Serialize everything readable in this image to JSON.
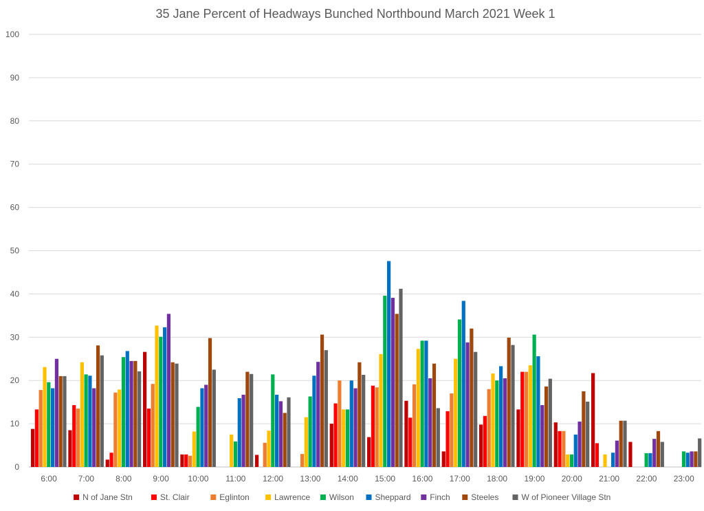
{
  "chart_data": {
    "type": "bar",
    "title": "35 Jane  Percent of Headways Bunched Northbound March 2021 Week 1",
    "xlabel": "",
    "ylabel": "",
    "ylim": [
      0,
      100
    ],
    "yticks": [
      0,
      10,
      20,
      30,
      40,
      50,
      60,
      70,
      80,
      90,
      100
    ],
    "grid": true,
    "legend_position": "bottom",
    "categories": [
      "6:00",
      "7:00",
      "8:00",
      "9:00",
      "10:00",
      "11:00",
      "12:00",
      "13:00",
      "14:00",
      "15:00",
      "16:00",
      "17:00",
      "18:00",
      "19:00",
      "20:00",
      "21:00",
      "22:00",
      "23:00"
    ],
    "series": [
      {
        "name": "N of Jane Stn",
        "color": "#C00000",
        "values": [
          8.8,
          8.5,
          1.7,
          26.6,
          2.9,
          0,
          2.8,
          0,
          10.0,
          6.9,
          15.3,
          3.6,
          9.8,
          13.3,
          10.3,
          21.7,
          5.8,
          0
        ]
      },
      {
        "name": "St. Clair",
        "color": "#FF0000",
        "values": [
          13.3,
          14.3,
          3.3,
          13.5,
          2.9,
          0,
          0,
          0,
          14.7,
          18.8,
          11.4,
          12.9,
          11.8,
          22.0,
          8.3,
          5.5,
          0,
          0
        ]
      },
      {
        "name": "Eglinton",
        "color": "#ED7D31",
        "values": [
          17.8,
          13.5,
          17.2,
          19.2,
          2.6,
          0,
          5.6,
          3.0,
          20.0,
          18.4,
          19.1,
          17.0,
          18.0,
          22.0,
          8.3,
          0,
          0,
          0
        ]
      },
      {
        "name": "Lawrence",
        "color": "#FFC000",
        "values": [
          23.1,
          24.2,
          17.9,
          32.7,
          8.2,
          7.5,
          8.4,
          11.5,
          13.3,
          26.1,
          27.3,
          25.0,
          21.6,
          23.5,
          2.9,
          2.9,
          0,
          0
        ]
      },
      {
        "name": "Wilson",
        "color": "#00B050",
        "values": [
          19.6,
          21.4,
          25.4,
          30.1,
          13.9,
          5.9,
          21.4,
          16.3,
          13.3,
          39.6,
          29.2,
          34.1,
          20.0,
          30.6,
          2.9,
          0,
          3.2,
          3.6
        ]
      },
      {
        "name": "Sheppard",
        "color": "#0070C0",
        "values": [
          18.2,
          21.1,
          26.8,
          32.3,
          18.2,
          15.9,
          16.7,
          21.1,
          20.0,
          47.6,
          29.2,
          38.4,
          23.3,
          25.6,
          7.5,
          3.3,
          3.2,
          3.3
        ]
      },
      {
        "name": "Finch",
        "color": "#7030A0",
        "values": [
          25.0,
          18.2,
          24.5,
          35.4,
          19.0,
          16.7,
          15.2,
          24.3,
          18.2,
          39.1,
          20.5,
          28.8,
          20.5,
          14.3,
          10.5,
          6.1,
          6.5,
          3.6
        ]
      },
      {
        "name": "Steeles",
        "color": "#9E480E",
        "values": [
          21.0,
          28.1,
          24.5,
          24.2,
          29.8,
          22.0,
          12.5,
          30.6,
          24.2,
          35.4,
          23.9,
          32.0,
          29.9,
          18.6,
          17.5,
          10.7,
          8.3,
          3.6
        ]
      },
      {
        "name": "W of Pioneer Village Stn",
        "color": "#636363",
        "values": [
          21.0,
          25.8,
          22.1,
          23.9,
          22.5,
          21.5,
          16.1,
          27.0,
          21.3,
          41.2,
          13.6,
          26.6,
          28.2,
          20.4,
          15.1,
          10.7,
          5.8,
          6.6
        ]
      }
    ]
  }
}
